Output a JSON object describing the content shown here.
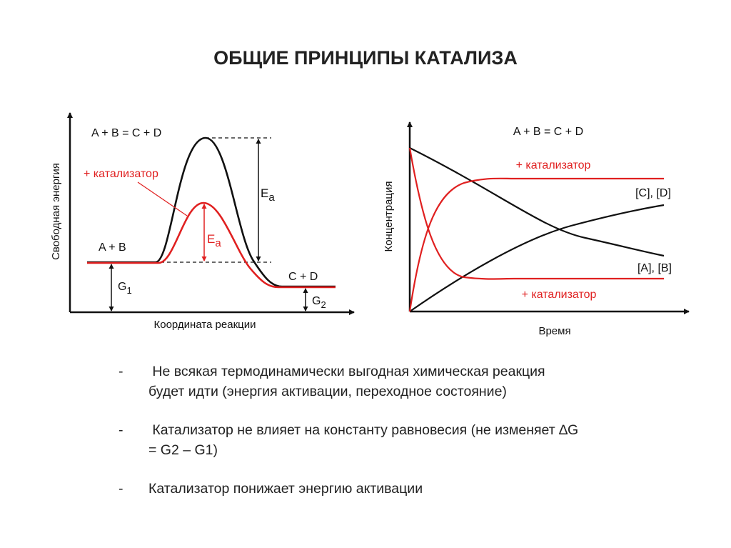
{
  "title": "ОБЩИЕ ПРИНЦИПЫ КАТАЛИЗА",
  "colors": {
    "catalyst": "#e02020",
    "uncatalyzed": "#111111"
  },
  "energy_diagram": {
    "equation": "A + B = C + D",
    "catalyst_label": "+ катализатор",
    "ylabel": "Свободная энергия",
    "xlabel": "Координата реакции",
    "reactants": "A + B",
    "products": "C + D",
    "ea_label": "E",
    "ea_sub": "a",
    "g1_label": "G",
    "g1_sub": "1",
    "g2_label": "G",
    "g2_sub": "2"
  },
  "kinetics_diagram": {
    "equation": "A + B = C + D",
    "catalyst_label_top": "+ катализатор",
    "catalyst_label_bottom": "+ катализатор",
    "products_label": "[C], [D]",
    "reactants_label": "[A], [B]",
    "ylabel": "Концентрация",
    "xlabel": "Время"
  },
  "bullets": [
    {
      "dash": "-",
      "text": " Не всякая термодинамически выгодная химическая реакция будет идти (энергия активации, переходное состояние)"
    },
    {
      "dash": "-",
      "text": " Катализатор не влияет на константу равновесия (не изменяет ∆G = G2 – G1)"
    },
    {
      "dash": "-",
      "text": "Катализатор понижает энергию активации"
    }
  ]
}
